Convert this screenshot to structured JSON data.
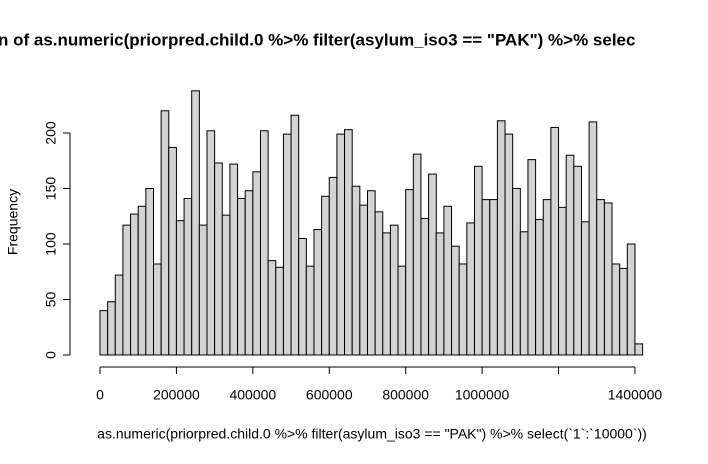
{
  "chart_data": {
    "type": "histogram",
    "title": "n of as.numeric(priorpred.child.0 %>% filter(asylum_iso3 == \"PAK\") %>% selec",
    "x_label": "as.numeric(priorpred.child.0 %>% filter(asylum_iso3 == \"PAK\") %>% select(`1`:`10000`))",
    "y_label": "Frequency",
    "color": "#d3d3d3",
    "bins": [
      0,
      20000,
      40000,
      60000,
      80000,
      100000,
      120000,
      140000,
      160000,
      180000,
      200000,
      220000,
      240000,
      260000,
      280000,
      300000,
      320000,
      340000,
      360000,
      380000,
      400000,
      420000,
      440000,
      460000,
      480000,
      500000,
      520000,
      540000,
      560000,
      580000,
      600000,
      620000,
      640000,
      660000,
      680000,
      700000,
      720000,
      740000,
      760000,
      780000,
      800000,
      820000,
      840000,
      860000,
      880000,
      900000,
      920000,
      940000,
      960000,
      980000,
      1000000,
      1020000,
      1040000,
      1060000,
      1080000,
      1100000,
      1120000,
      1140000,
      1160000,
      1180000,
      1200000,
      1220000,
      1240000,
      1260000,
      1280000,
      1300000,
      1320000,
      1340000,
      1360000,
      1380000,
      1400000,
      1420000
    ],
    "values": [
      40,
      48,
      72,
      117,
      127,
      134,
      150,
      82,
      220,
      187,
      121,
      141,
      238,
      117,
      202,
      173,
      126,
      172,
      141,
      148,
      165,
      202,
      85,
      79,
      199,
      216,
      105,
      80,
      113,
      143,
      160,
      199,
      203,
      152,
      135,
      148,
      129,
      110,
      117,
      80,
      149,
      181,
      123,
      163,
      110,
      134,
      98,
      82,
      119,
      170,
      140,
      140,
      211,
      199,
      150,
      111,
      176,
      122,
      140,
      205,
      133,
      180,
      170,
      120,
      210,
      140,
      137,
      82,
      78,
      100,
      10
    ],
    "xlim": [
      0,
      1420000
    ],
    "ylim": [
      0,
      240
    ],
    "xticks": [
      0,
      200000,
      400000,
      600000,
      800000,
      1000000,
      {
        "value": 1200000,
        "label": null
      },
      1400000
    ],
    "yticks": [
      0,
      50,
      100,
      150,
      200
    ]
  }
}
